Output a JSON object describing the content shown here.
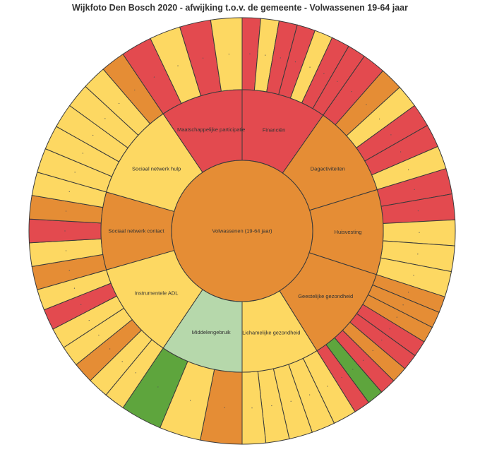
{
  "chart_data": {
    "type": "sunburst",
    "title": "Wijkfoto Den Bosch 2020 - afwijking t.o.v. de gemeente - Volwassenen 19-64 jaar",
    "colors": {
      "red": "#e34a4f",
      "orange": "#e58d35",
      "yellow": "#fdd862",
      "green": "#5ea53d",
      "light_green": "#b6d8ab"
    },
    "root": {
      "label": "Volwassenen (19-64 jaar)",
      "color": "orange"
    },
    "segments": [
      {
        "label": "Financiën",
        "color": "red",
        "start": 0,
        "end": 35,
        "children": [
          "red",
          "yellow",
          "red",
          "red",
          "yellow",
          "red",
          "red"
        ]
      },
      {
        "label": "Dagactiviteiten",
        "color": "orange",
        "start": 35,
        "end": 73,
        "children": [
          "red",
          "orange",
          "yellow",
          "red",
          "red",
          "yellow"
        ]
      },
      {
        "label": "Huisvesting",
        "color": "orange",
        "start": 73,
        "end": 108,
        "children": [
          "red",
          "red",
          "yellow",
          "yellow",
          "yellow"
        ]
      },
      {
        "label": "Geestelijke gezondheid",
        "color": "orange",
        "start": 108,
        "end": 148,
        "children": [
          "orange",
          "orange",
          "orange",
          "red",
          "red",
          "orange",
          "red",
          "green",
          "red"
        ]
      },
      {
        "label": "Lichamelijke gezondheid",
        "color": "yellow",
        "start": 148,
        "end": 180,
        "children": [
          "yellow",
          "yellow",
          "yellow",
          "yellow",
          "yellow"
        ]
      },
      {
        "label": "Middelengebruik",
        "color": "light_green",
        "start": 180,
        "end": 214,
        "children": [
          "orange",
          "yellow",
          "green"
        ]
      },
      {
        "label": "Instrumentele ADL",
        "color": "yellow",
        "start": 214,
        "end": 254,
        "children": [
          "yellow",
          "yellow",
          "orange",
          "yellow",
          "yellow",
          "red",
          "yellow"
        ]
      },
      {
        "label": "Sociaal netwerk contact",
        "color": "orange",
        "start": 254,
        "end": 286,
        "children": [
          "orange",
          "yellow",
          "red",
          "orange",
          "yellow"
        ]
      },
      {
        "label": "Sociaal netwerk hulp",
        "color": "yellow",
        "start": 286,
        "end": 326,
        "children": [
          "yellow",
          "yellow",
          "yellow",
          "yellow",
          "yellow",
          "orange"
        ]
      },
      {
        "label": "Maatschappelijke participatie",
        "color": "red",
        "start": 326,
        "end": 360,
        "children": [
          "red",
          "yellow",
          "red",
          "yellow"
        ]
      }
    ]
  }
}
